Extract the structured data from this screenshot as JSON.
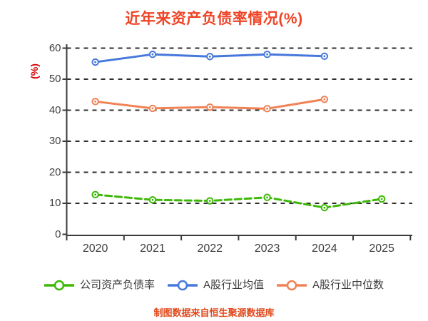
{
  "chart_data": {
    "type": "line",
    "title": "近年来资产负债率情况(%)",
    "ylabel": "(%)",
    "xlabel": "",
    "categories": [
      "2020",
      "2021",
      "2022",
      "2023",
      "2024",
      "2025"
    ],
    "y_ticks": [
      "0",
      "10",
      "20",
      "30",
      "40",
      "50",
      "60"
    ],
    "ylim": [
      0,
      60
    ],
    "grid": "horizontal-dashed",
    "legend_position": "bottom",
    "series": [
      {
        "name": "公司资产负债率",
        "color": "#3db807",
        "line_style": "dashed",
        "marker": "hollow-circle",
        "values": [
          12.8,
          11.1,
          10.8,
          11.9,
          8.6,
          11.4
        ]
      },
      {
        "name": "A股行业均值",
        "color": "#4678db",
        "line_style": "solid",
        "marker": "hollow-circle",
        "values": [
          55.5,
          58.0,
          57.3,
          58.0,
          57.4,
          null
        ]
      },
      {
        "name": "A股行业中位数",
        "color": "#f08255",
        "line_style": "solid",
        "marker": "hollow-circle",
        "values": [
          42.8,
          40.6,
          41.0,
          40.5,
          43.5,
          null
        ]
      }
    ]
  },
  "footer": {
    "text": "制图数据来自恒生聚源数据库"
  },
  "colors": {
    "background": "#ffffff",
    "title": "#ee4527",
    "ylabel": "#d40000",
    "footer": "#e0481c",
    "axis_line": "#3a3a3a",
    "gridline": "#2e2e2e",
    "tick_label": "#3f3f3f",
    "legend_text": "#3a3a3a",
    "marker_fill": "#ffffff"
  }
}
